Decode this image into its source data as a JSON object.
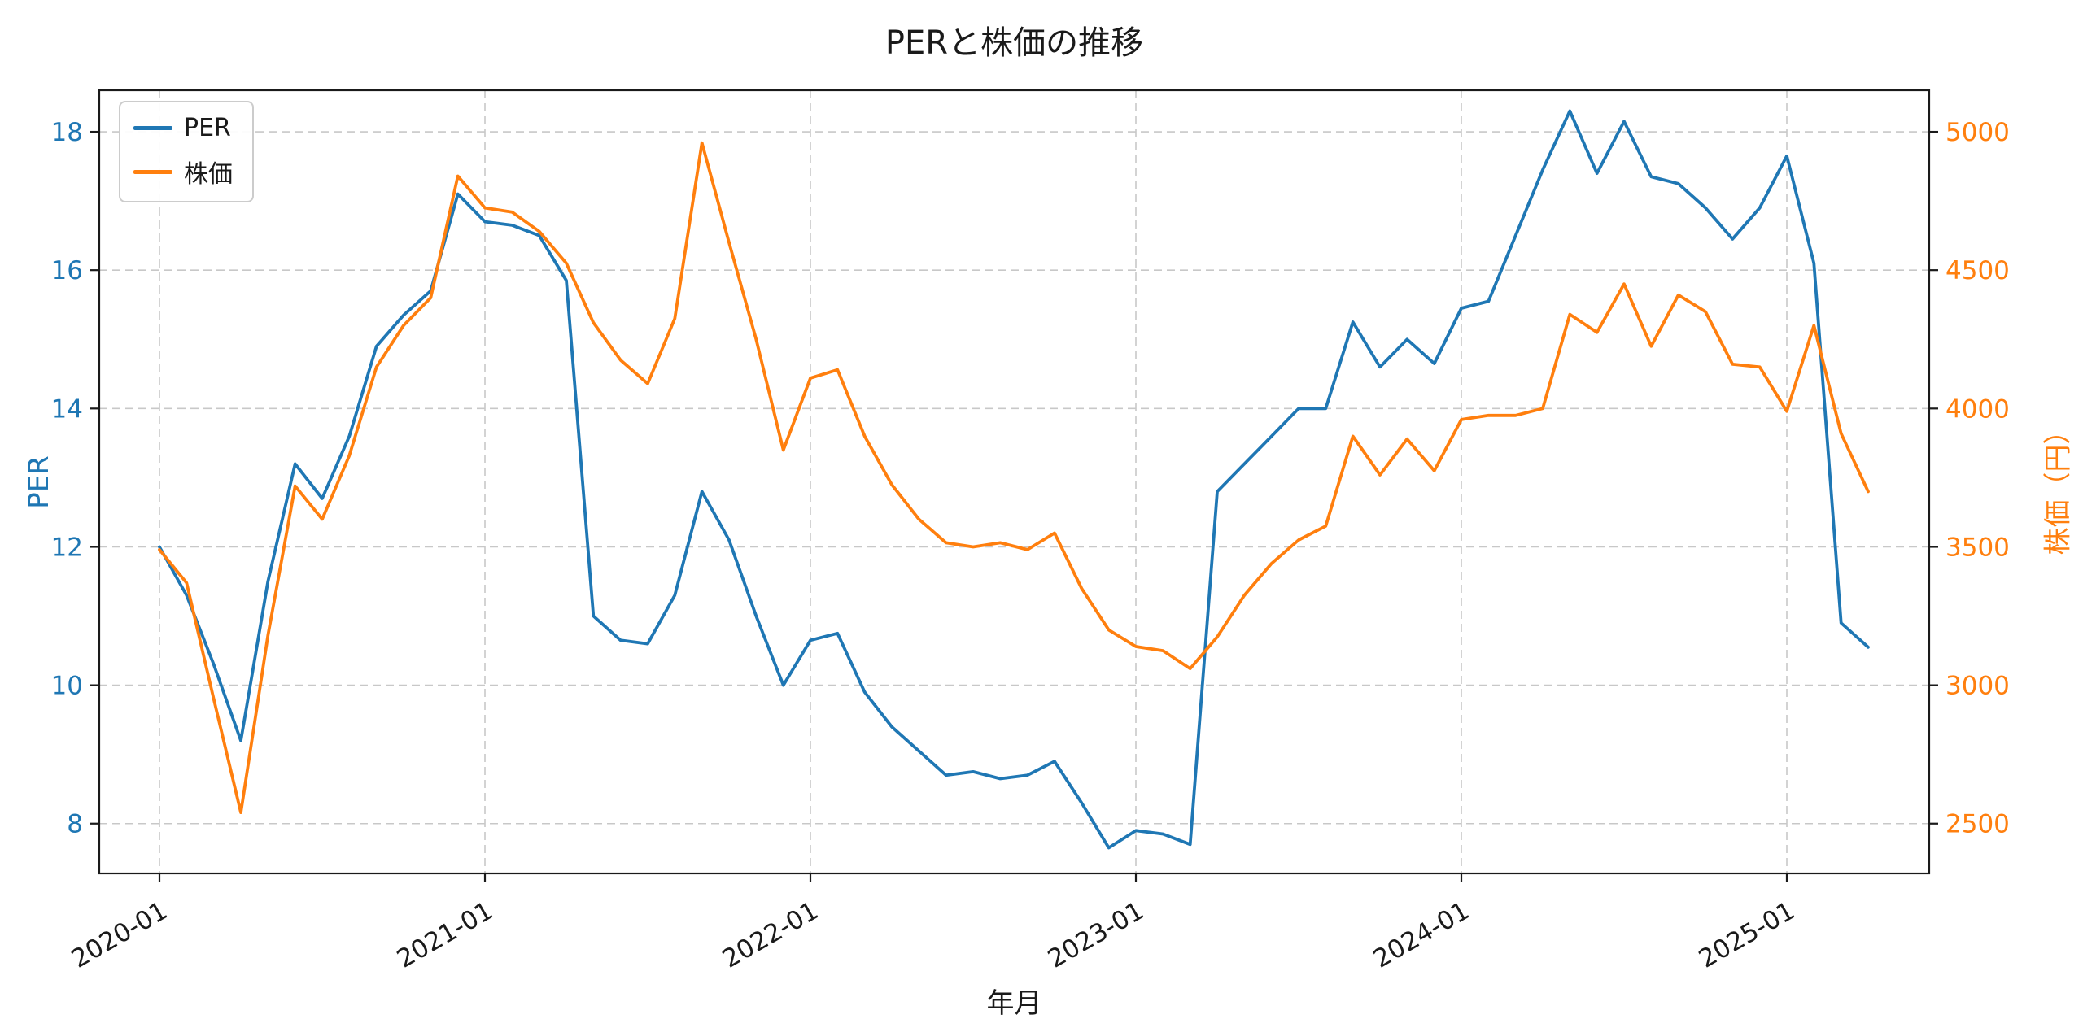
{
  "chart_data": {
    "type": "line",
    "title": "PERと株価の推移",
    "xlabel": "年月",
    "grid": true,
    "legend_position": "upper left",
    "x_ticks": [
      "2020-01",
      "2021-01",
      "2022-01",
      "2023-01",
      "2024-01",
      "2025-01"
    ],
    "x": [
      "2020-01",
      "2020-02",
      "2020-03",
      "2020-04",
      "2020-05",
      "2020-06",
      "2020-07",
      "2020-08",
      "2020-09",
      "2020-10",
      "2020-11",
      "2020-12",
      "2021-01",
      "2021-02",
      "2021-03",
      "2021-04",
      "2021-05",
      "2021-06",
      "2021-07",
      "2021-08",
      "2021-09",
      "2021-10",
      "2021-11",
      "2021-12",
      "2022-01",
      "2022-02",
      "2022-03",
      "2022-04",
      "2022-05",
      "2022-06",
      "2022-07",
      "2022-08",
      "2022-09",
      "2022-10",
      "2022-11",
      "2022-12",
      "2023-01",
      "2023-02",
      "2023-03",
      "2023-04",
      "2023-05",
      "2023-06",
      "2023-07",
      "2023-08",
      "2023-09",
      "2023-10",
      "2023-11",
      "2023-12",
      "2024-01",
      "2024-02",
      "2024-03",
      "2024-04",
      "2024-05",
      "2024-06",
      "2024-07",
      "2024-08",
      "2024-09",
      "2024-10",
      "2024-11",
      "2024-12",
      "2025-01",
      "2025-02",
      "2025-03",
      "2025-04"
    ],
    "series": [
      {
        "name": "PER",
        "axis": "left",
        "color": "#1f77b4",
        "values": [
          12.0,
          11.3,
          10.3,
          9.2,
          11.5,
          13.2,
          12.7,
          13.6,
          14.9,
          15.35,
          15.7,
          17.1,
          16.7,
          16.65,
          16.5,
          15.85,
          11.0,
          10.65,
          10.6,
          11.3,
          12.8,
          12.1,
          11.0,
          10.0,
          10.65,
          10.75,
          9.9,
          9.4,
          9.05,
          8.7,
          8.75,
          8.65,
          8.7,
          8.9,
          8.3,
          7.65,
          7.9,
          7.85,
          7.7,
          12.8,
          13.2,
          13.6,
          14.0,
          14.0,
          15.25,
          14.6,
          15.0,
          14.65,
          15.45,
          15.55,
          16.5,
          17.45,
          18.3,
          17.4,
          18.15,
          17.35,
          17.25,
          16.9,
          16.45,
          16.9,
          17.65,
          16.1,
          10.9,
          10.55
        ]
      },
      {
        "name": "株価",
        "axis": "right",
        "color": "#ff7f0e",
        "values": [
          3490,
          3370,
          2950,
          2540,
          3180,
          3720,
          3600,
          3830,
          4150,
          4300,
          4400,
          4840,
          4725,
          4710,
          4640,
          4525,
          4310,
          4175,
          4090,
          4325,
          4960,
          4600,
          4250,
          3850,
          4110,
          4140,
          3900,
          3725,
          3600,
          3515,
          3500,
          3515,
          3490,
          3550,
          3350,
          3200,
          3140,
          3125,
          3060,
          3175,
          3325,
          3440,
          3525,
          3575,
          3900,
          3760,
          3890,
          3775,
          3960,
          3975,
          3975,
          4000,
          4340,
          4275,
          4450,
          4225,
          4410,
          4350,
          4160,
          4150,
          3990,
          4300,
          3910,
          3700
        ]
      }
    ],
    "y_left": {
      "label": "PER",
      "color": "#1f77b4",
      "ticks": [
        8,
        10,
        12,
        14,
        16,
        18
      ],
      "lim": [
        7.28,
        18.6
      ]
    },
    "y_right": {
      "label": "株価（円）",
      "color": "#ff7f0e",
      "ticks": [
        2500,
        3000,
        3500,
        4000,
        4500,
        5000
      ],
      "lim": [
        2320,
        5150
      ]
    }
  },
  "style": {
    "grid_color": "#c8c8c8",
    "spine_color": "#1a1a1a",
    "tick_text_color": "#1a1a1a"
  }
}
